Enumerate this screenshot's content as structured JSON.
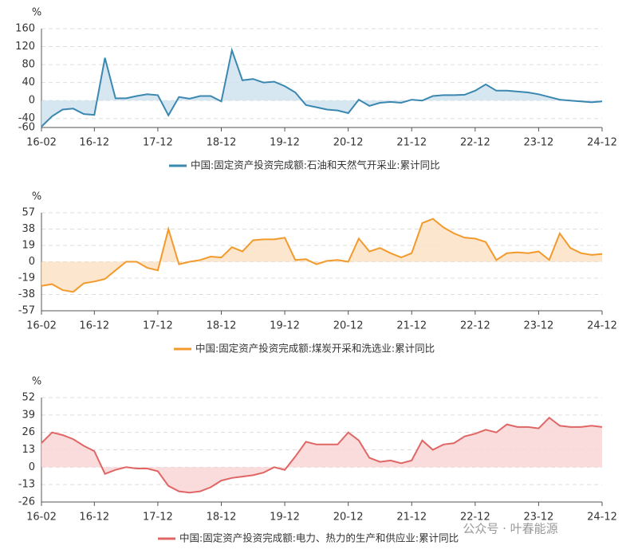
{
  "chart_data": [
    {
      "type": "area",
      "y_unit": "%",
      "categories": [
        "16-02",
        null,
        null,
        null,
        null,
        "16-12",
        null,
        null,
        null,
        null,
        null,
        "17-12",
        null,
        null,
        null,
        null,
        null,
        "18-12",
        null,
        null,
        null,
        null,
        null,
        "19-12",
        null,
        null,
        null,
        null,
        null,
        "20-12",
        null,
        null,
        null,
        null,
        null,
        "21-12",
        null,
        null,
        null,
        null,
        null,
        "22-12",
        null,
        null,
        null,
        null,
        null,
        "23-12",
        null,
        null,
        null,
        null,
        null,
        "24-12"
      ],
      "series": [
        {
          "name": "中国:固定资产投资完成额:石油和天然气开采业:累计同比",
          "color": "#3a87b0",
          "fill": "#cfe3ee",
          "values": [
            -58,
            -35,
            -20,
            -18,
            -30,
            -32,
            95,
            5,
            5,
            10,
            14,
            12,
            -33,
            8,
            4,
            10,
            10,
            -2,
            112,
            45,
            48,
            40,
            42,
            32,
            18,
            -10,
            -15,
            -20,
            -22,
            -28,
            2,
            -12,
            -5,
            -3,
            -5,
            2,
            0,
            10,
            12,
            12,
            13,
            22,
            36,
            22,
            22,
            20,
            18,
            14,
            8,
            2,
            0,
            -2,
            -4,
            -2
          ]
        }
      ],
      "ylim": [
        -60,
        160
      ],
      "yticks": [
        160,
        120,
        80,
        40,
        0,
        -40,
        -60
      ],
      "grid": true
    },
    {
      "type": "area",
      "y_unit": "%",
      "categories": [
        "16-02",
        null,
        null,
        null,
        null,
        "16-12",
        null,
        null,
        null,
        null,
        null,
        "17-12",
        null,
        null,
        null,
        null,
        null,
        "18-12",
        null,
        null,
        null,
        null,
        null,
        "19-12",
        null,
        null,
        null,
        null,
        null,
        "20-12",
        null,
        null,
        null,
        null,
        null,
        "21-12",
        null,
        null,
        null,
        null,
        null,
        "22-12",
        null,
        null,
        null,
        null,
        null,
        "23-12",
        null,
        null,
        null,
        null,
        null,
        "24-12"
      ],
      "series": [
        {
          "name": "中国:固定资产投资完成额:煤炭开采和洗选业:累计同比",
          "color": "#f39a2c",
          "fill": "#fde2c6",
          "values": [
            -28,
            -26,
            -33,
            -35,
            -25,
            -23,
            -20,
            -10,
            0,
            0,
            -7,
            -10,
            38,
            -3,
            0,
            2,
            6,
            5,
            17,
            12,
            25,
            26,
            26,
            28,
            2,
            3,
            -3,
            1,
            2,
            0,
            27,
            12,
            16,
            10,
            5,
            10,
            45,
            50,
            40,
            33,
            28,
            27,
            23,
            2,
            10,
            11,
            10,
            12,
            2,
            33,
            16,
            10,
            8,
            9
          ]
        }
      ],
      "ylim": [
        -57,
        57
      ],
      "yticks": [
        57,
        38,
        19,
        0,
        -19,
        -38,
        -57
      ],
      "grid": true
    },
    {
      "type": "area",
      "y_unit": "%",
      "categories": [
        "16-02",
        null,
        null,
        null,
        null,
        "16-12",
        null,
        null,
        null,
        null,
        null,
        "17-12",
        null,
        null,
        null,
        null,
        null,
        "18-12",
        null,
        null,
        null,
        null,
        null,
        "19-12",
        null,
        null,
        null,
        null,
        null,
        "20-12",
        null,
        null,
        null,
        null,
        null,
        "21-12",
        null,
        null,
        null,
        null,
        null,
        "22-12",
        null,
        null,
        null,
        null,
        null,
        "23-12",
        null,
        null,
        null,
        null,
        null,
        "24-12"
      ],
      "series": [
        {
          "name": "中国:固定资产投资完成额:电力、热力的生产和供应业:累计同比",
          "color": "#e06666",
          "fill": "#f9d6d6",
          "values": [
            18,
            26,
            24,
            21,
            16,
            12,
            -5,
            -2,
            0,
            -1,
            -1,
            -3,
            -14,
            -18,
            -19,
            -18,
            -15,
            -10,
            -8,
            -7,
            -6,
            -4,
            0,
            -2,
            8,
            19,
            17,
            17,
            17,
            26,
            20,
            7,
            4,
            5,
            3,
            5,
            20,
            13,
            17,
            18,
            23,
            25,
            28,
            26,
            32,
            30,
            30,
            29,
            37,
            31,
            30,
            30,
            31,
            30
          ]
        }
      ],
      "ylim": [
        -26,
        52
      ],
      "yticks": [
        52,
        39,
        26,
        13,
        0,
        -13,
        -26
      ],
      "grid": true
    }
  ],
  "watermark": "公众号 · 叶春能源"
}
